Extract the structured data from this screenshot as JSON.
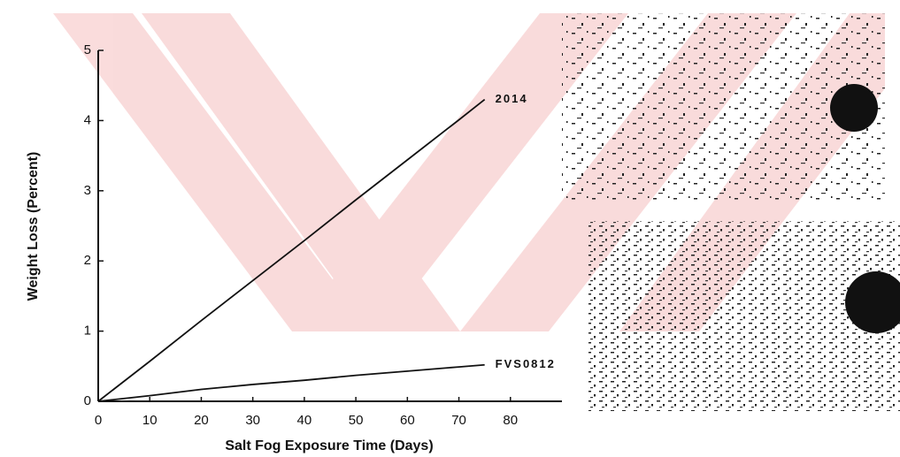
{
  "chart_data": {
    "type": "line",
    "x_label": "Salt Fog Exposure Time (Days)",
    "y_label": "Weight Loss (Percent)",
    "x": [
      0,
      10,
      20,
      30,
      40,
      50,
      60,
      70,
      75
    ],
    "series": [
      {
        "name": "2014",
        "color": "#111111",
        "values": [
          0,
          0.57,
          1.15,
          1.72,
          2.29,
          2.87,
          3.44,
          4.01,
          4.3
        ]
      },
      {
        "name": "FVS0812",
        "color": "#111111",
        "values": [
          0,
          0.08,
          0.17,
          0.24,
          0.3,
          0.37,
          0.43,
          0.49,
          0.52
        ]
      }
    ],
    "xlim": [
      0,
      90
    ],
    "xticks": [
      0,
      10,
      20,
      30,
      40,
      50,
      60,
      70,
      80
    ],
    "ylim": [
      0,
      5
    ],
    "yticks": [
      0,
      1,
      2,
      3,
      4,
      5
    ],
    "grid": false
  }
}
